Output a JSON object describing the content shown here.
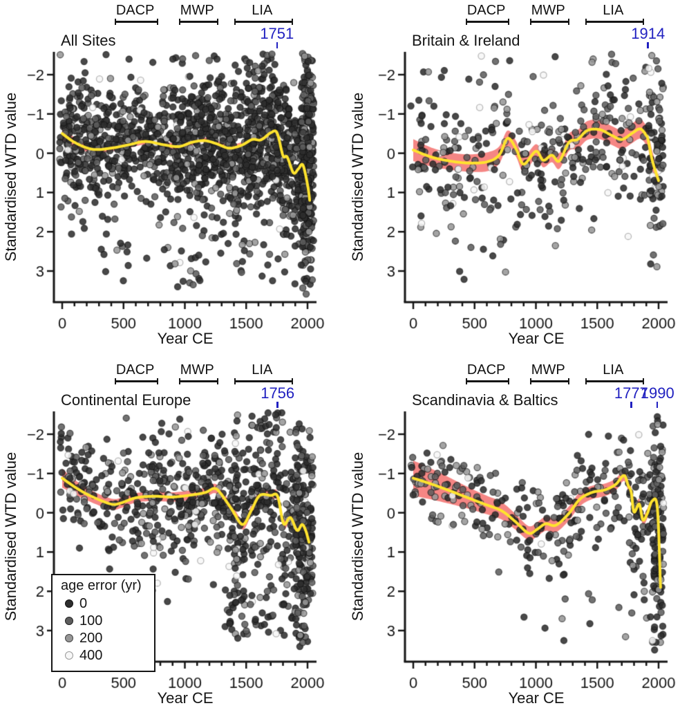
{
  "figure": {
    "y_axis_label": "Standardised WTD value",
    "x_axis_label": "Year CE",
    "accent_blue": "#2020c0",
    "band_color": "#f4807d",
    "line_color": "#ffe32e",
    "axis_color": "#151515"
  },
  "periods": [
    {
      "label": "DACP",
      "start": 430,
      "end": 760
    },
    {
      "label": "MWP",
      "start": 950,
      "end": 1250
    },
    {
      "label": "LIA",
      "start": 1400,
      "end": 1860
    }
  ],
  "legend": {
    "title": "age error (yr)",
    "items": [
      {
        "label": "0",
        "fill": "#2e2e2e",
        "ring": "#111111"
      },
      {
        "label": "100",
        "fill": "#5d5d5d",
        "ring": "#222222"
      },
      {
        "label": "200",
        "fill": "#979797",
        "ring": "#444444"
      },
      {
        "label": "400",
        "fill": "#f7f7f7",
        "ring": "#9a9a9a"
      }
    ],
    "age_error_classes": [
      0,
      100,
      200,
      400
    ]
  },
  "chart_data": [
    {
      "type": "scatter",
      "title": "All Sites",
      "xlabel": "Year CE",
      "ylabel": "Standardised WTD value",
      "xlim": [
        -65,
        2075
      ],
      "ylim": [
        -2.6,
        3.8
      ],
      "y_axis_reversed": true,
      "x_ticks": [
        0,
        500,
        1000,
        1500,
        2000
      ],
      "x_minor_step": 100,
      "y_ticks": [
        -2,
        -1,
        0,
        1,
        2,
        3
      ],
      "annotations": [
        {
          "label": "1751",
          "year": 1751
        }
      ],
      "trend": [
        [
          0,
          -0.5,
          0.17
        ],
        [
          110,
          -0.26,
          0.12
        ],
        [
          250,
          -0.1,
          0.09
        ],
        [
          400,
          -0.13,
          0.08
        ],
        [
          550,
          -0.22,
          0.08
        ],
        [
          680,
          -0.3,
          0.08
        ],
        [
          820,
          -0.22,
          0.08
        ],
        [
          950,
          -0.17,
          0.08
        ],
        [
          1060,
          -0.28,
          0.08
        ],
        [
          1160,
          -0.32,
          0.08
        ],
        [
          1260,
          -0.24,
          0.08
        ],
        [
          1360,
          -0.13,
          0.08
        ],
        [
          1460,
          -0.2,
          0.08
        ],
        [
          1550,
          -0.35,
          0.08
        ],
        [
          1620,
          -0.34,
          0.08
        ],
        [
          1700,
          -0.52,
          0.08
        ],
        [
          1751,
          -0.52,
          0.08
        ],
        [
          1800,
          0.06,
          0.09
        ],
        [
          1835,
          0.1,
          0.09
        ],
        [
          1885,
          0.5,
          0.1
        ],
        [
          1925,
          0.4,
          0.1
        ],
        [
          1962,
          0.3,
          0.1
        ],
        [
          2000,
          0.8,
          0.11
        ],
        [
          2018,
          1.2,
          0.12
        ]
      ],
      "scatter": {
        "seed": 7,
        "shade_weights": [
          0.62,
          0.25,
          0.11,
          0.02
        ],
        "clusters": [
          {
            "x0": -20,
            "x1": 900,
            "n": 500,
            "sigma": 0.8
          },
          {
            "x0": 900,
            "x1": 1500,
            "n": 470,
            "sigma": 0.88
          },
          {
            "x0": 1500,
            "x1": 1990,
            "n": 500,
            "sigma": 0.95
          },
          {
            "x0": 1950,
            "x1": 2050,
            "n": 270,
            "sigma": 1.25,
            "mu": 0.3
          },
          {
            "x0": 250,
            "x1": 2010,
            "n": 55,
            "ymin": 1.9,
            "ymax": 3.45
          }
        ]
      }
    },
    {
      "type": "scatter",
      "title": "Britain & Ireland",
      "xlabel": "Year CE",
      "ylabel": "Standardised WTD value",
      "xlim": [
        -65,
        2075
      ],
      "ylim": [
        -2.6,
        3.8
      ],
      "y_axis_reversed": true,
      "x_ticks": [
        0,
        500,
        1000,
        1500,
        2000
      ],
      "x_minor_step": 100,
      "y_ticks": [
        -2,
        -1,
        0,
        1,
        2,
        3
      ],
      "annotations": [
        {
          "label": "1914",
          "year": 1914
        }
      ],
      "trend": [
        [
          0,
          -0.08,
          0.28
        ],
        [
          150,
          0.1,
          0.24
        ],
        [
          300,
          0.2,
          0.22
        ],
        [
          450,
          0.25,
          0.22
        ],
        [
          600,
          0.22,
          0.24
        ],
        [
          700,
          0.05,
          0.22
        ],
        [
          770,
          -0.38,
          0.2
        ],
        [
          840,
          -0.1,
          0.2
        ],
        [
          900,
          0.28,
          0.2
        ],
        [
          1000,
          -0.05,
          0.18
        ],
        [
          1060,
          0.18,
          0.18
        ],
        [
          1130,
          0.05,
          0.18
        ],
        [
          1190,
          0.2,
          0.2
        ],
        [
          1270,
          -0.28,
          0.22
        ],
        [
          1340,
          -0.35,
          0.24
        ],
        [
          1420,
          -0.58,
          0.24
        ],
        [
          1520,
          -0.6,
          0.24
        ],
        [
          1620,
          -0.45,
          0.24
        ],
        [
          1700,
          -0.35,
          0.24
        ],
        [
          1780,
          -0.5,
          0.25
        ],
        [
          1850,
          -0.62,
          0.25
        ],
        [
          1900,
          -0.45,
          0.24
        ],
        [
          1914,
          -0.35,
          0.22
        ],
        [
          1950,
          0.2,
          0.24
        ],
        [
          2000,
          0.7,
          0.26
        ]
      ],
      "scatter": {
        "seed": 11,
        "shade_weights": [
          0.4,
          0.3,
          0.24,
          0.06
        ],
        "clusters": [
          {
            "x0": -20,
            "x1": 900,
            "n": 150,
            "sigma": 0.95
          },
          {
            "x0": 900,
            "x1": 1900,
            "n": 195,
            "sigma": 0.95
          },
          {
            "x0": 1920,
            "x1": 2040,
            "n": 90,
            "sigma": 1.15,
            "mu": 0.0
          },
          {
            "x0": 300,
            "x1": 1990,
            "n": 12,
            "ymin": 1.8,
            "ymax": 3.1
          }
        ]
      }
    },
    {
      "type": "scatter",
      "title": "Continental Europe",
      "xlabel": "Year CE",
      "ylabel": "Standardised WTD value",
      "xlim": [
        -65,
        2075
      ],
      "ylim": [
        -2.6,
        3.8
      ],
      "y_axis_reversed": true,
      "x_ticks": [
        0,
        500,
        1000,
        1500,
        2000
      ],
      "x_minor_step": 100,
      "y_ticks": [
        -2,
        -1,
        0,
        1,
        2,
        3
      ],
      "annotations": [
        {
          "label": "1756",
          "year": 1756
        }
      ],
      "trend": [
        [
          0,
          -0.88,
          0.24
        ],
        [
          120,
          -0.62,
          0.18
        ],
        [
          250,
          -0.4,
          0.15
        ],
        [
          400,
          -0.22,
          0.14
        ],
        [
          480,
          -0.25,
          0.13
        ],
        [
          600,
          -0.38,
          0.12
        ],
        [
          750,
          -0.42,
          0.12
        ],
        [
          900,
          -0.4,
          0.12
        ],
        [
          1050,
          -0.45,
          0.12
        ],
        [
          1170,
          -0.52,
          0.12
        ],
        [
          1240,
          -0.62,
          0.12
        ],
        [
          1290,
          -0.5,
          0.12
        ],
        [
          1380,
          -0.1,
          0.12
        ],
        [
          1470,
          0.3,
          0.13
        ],
        [
          1540,
          -0.05,
          0.12
        ],
        [
          1610,
          -0.44,
          0.12
        ],
        [
          1700,
          -0.44,
          0.12
        ],
        [
          1756,
          -0.42,
          0.12
        ],
        [
          1805,
          0.28,
          0.12
        ],
        [
          1860,
          0.12,
          0.12
        ],
        [
          1915,
          0.45,
          0.12
        ],
        [
          1955,
          0.3,
          0.12
        ],
        [
          1985,
          0.45,
          0.13
        ],
        [
          2012,
          0.75,
          0.14
        ]
      ],
      "scatter": {
        "seed": 23,
        "shade_weights": [
          0.58,
          0.26,
          0.13,
          0.03
        ],
        "clusters": [
          {
            "x0": -20,
            "x1": 700,
            "n": 165,
            "sigma": 0.72
          },
          {
            "x0": 700,
            "x1": 1400,
            "n": 275,
            "sigma": 0.88
          },
          {
            "x0": 1400,
            "x1": 2000,
            "n": 300,
            "sigma": 1.05
          },
          {
            "x0": 1900,
            "x1": 2045,
            "n": 165,
            "sigma": 1.3,
            "mu": 0.5
          },
          {
            "x0": 1300,
            "x1": 2010,
            "n": 65,
            "ymin": 1.9,
            "ymax": 3.2
          }
        ]
      }
    },
    {
      "type": "scatter",
      "title": "Scandinavia & Baltics",
      "xlabel": "Year CE",
      "ylabel": "Standardised WTD value",
      "xlim": [
        -65,
        2075
      ],
      "ylim": [
        -2.6,
        3.8
      ],
      "y_axis_reversed": true,
      "x_ticks": [
        0,
        500,
        1000,
        1500,
        2000
      ],
      "x_minor_step": 100,
      "y_ticks": [
        -2,
        -1,
        0,
        1,
        2,
        3
      ],
      "annotations": [
        {
          "label": "1777",
          "year": 1777
        },
        {
          "label": "1990",
          "year": 1990
        }
      ],
      "trend": [
        [
          0,
          -0.88,
          0.45
        ],
        [
          130,
          -0.75,
          0.4
        ],
        [
          280,
          -0.58,
          0.34
        ],
        [
          430,
          -0.4,
          0.28
        ],
        [
          580,
          -0.22,
          0.24
        ],
        [
          720,
          -0.05,
          0.22
        ],
        [
          830,
          0.22,
          0.2
        ],
        [
          940,
          0.52,
          0.18
        ],
        [
          1010,
          0.42,
          0.18
        ],
        [
          1080,
          0.28,
          0.18
        ],
        [
          1160,
          0.32,
          0.18
        ],
        [
          1260,
          0.05,
          0.18
        ],
        [
          1360,
          -0.35,
          0.18
        ],
        [
          1460,
          -0.52,
          0.17
        ],
        [
          1560,
          -0.58,
          0.16
        ],
        [
          1650,
          -0.72,
          0.15
        ],
        [
          1717,
          -0.95,
          0.14
        ],
        [
          1752,
          -0.7,
          0.14
        ],
        [
          1777,
          -0.52,
          0.14
        ],
        [
          1800,
          -0.02,
          0.14
        ],
        [
          1842,
          -0.22,
          0.14
        ],
        [
          1872,
          0.18,
          0.13
        ],
        [
          1908,
          0.02,
          0.13
        ],
        [
          1948,
          -0.3,
          0.13
        ],
        [
          1990,
          -0.12,
          0.13
        ],
        [
          2016,
          1.9,
          0.14
        ]
      ],
      "scatter": {
        "seed": 31,
        "shade_weights": [
          0.55,
          0.27,
          0.16,
          0.02
        ],
        "clusters": [
          {
            "x0": -20,
            "x1": 500,
            "n": 70,
            "sigma": 0.55,
            "shades": [
              0.25,
              0.3,
              0.43,
              0.02
            ]
          },
          {
            "x0": 500,
            "x1": 1000,
            "n": 58,
            "sigma": 0.6
          },
          {
            "x0": 1000,
            "x1": 1700,
            "n": 110,
            "sigma": 0.72
          },
          {
            "x0": 1700,
            "x1": 2000,
            "n": 78,
            "sigma": 0.92
          },
          {
            "x0": 1950,
            "x1": 2040,
            "n": 125,
            "sigma": 1.45,
            "mu": 0.7
          },
          {
            "x0": 900,
            "x1": 2000,
            "n": 14,
            "ymin": 1.5,
            "ymax": 3.3
          }
        ]
      }
    }
  ]
}
